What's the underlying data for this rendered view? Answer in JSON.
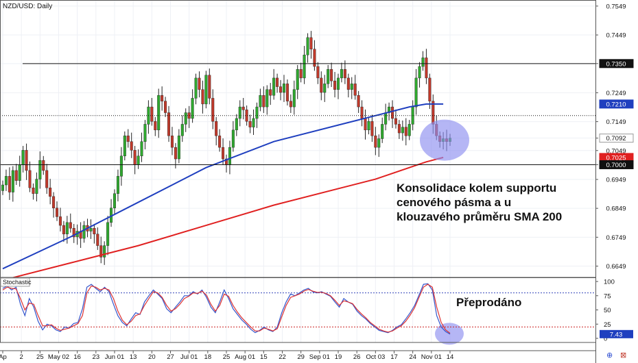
{
  "symbol_label": "NZD/USD: Daily",
  "stoch_label": "Stochastic",
  "annotations": {
    "main": [
      "Konsolidace kolem supportu",
      "cenového pásma a u",
      "klouzavého průměru SMA 200"
    ],
    "stoch": "Přeprodáno"
  },
  "colors": {
    "up": "#2fa82f",
    "down": "#c0392b",
    "sma_blue": "#1f3fbf",
    "sma_red": "#e02020",
    "stoch_k": "#3355cc",
    "stoch_d": "#dd3333",
    "highlight": "#8d8ff0"
  },
  "chart_data": [
    {
      "type": "candlestick",
      "title": "NZD/USD: Daily",
      "ylim": [
        0.661,
        0.757
      ],
      "y_ticks": [
        "0.7549",
        "0.7449",
        "0.7350",
        "0.7249",
        "0.7149",
        "0.7092",
        "0.7049",
        "0.7000",
        "0.6949",
        "0.6849",
        "0.6749",
        "0.6649"
      ],
      "price_labels": [
        {
          "value": "0.7350",
          "style": "dark"
        },
        {
          "value": "0.7210",
          "style": "blue"
        },
        {
          "value": "0.7092",
          "style": "plain"
        },
        {
          "value": "0.7025",
          "style": "red"
        },
        {
          "value": "0.7000",
          "style": "dark"
        }
      ],
      "x_ticks": [
        "Ap",
        "2",
        "25",
        "May 02",
        "16",
        "23",
        "Jun 01",
        "13",
        "20",
        "27",
        "Jul 01",
        "18",
        "25",
        "Aug 01",
        "15",
        "22",
        "29",
        "Sep 01",
        "19",
        "26",
        "Oct 03",
        "17",
        "24",
        "Nov 01",
        "14"
      ],
      "horizontal_lines": [
        {
          "value": 0.735,
          "style": "solid"
        },
        {
          "value": 0.717,
          "style": "dotted"
        },
        {
          "value": 0.7,
          "style": "solid"
        }
      ],
      "closes": [
        0.693,
        0.696,
        0.6905,
        0.698,
        0.6945,
        0.7,
        0.705,
        0.698,
        0.692,
        0.69,
        0.695,
        0.7015,
        0.698,
        0.692,
        0.689,
        0.685,
        0.682,
        0.679,
        0.676,
        0.68,
        0.678,
        0.675,
        0.677,
        0.6745,
        0.679,
        0.677,
        0.678,
        0.676,
        0.672,
        0.668,
        0.672,
        0.68,
        0.685,
        0.69,
        0.696,
        0.703,
        0.71,
        0.708,
        0.705,
        0.7,
        0.703,
        0.708,
        0.714,
        0.72,
        0.715,
        0.712,
        0.724,
        0.722,
        0.718,
        0.71,
        0.706,
        0.702,
        0.71,
        0.714,
        0.718,
        0.716,
        0.723,
        0.73,
        0.726,
        0.721,
        0.731,
        0.723,
        0.715,
        0.71,
        0.706,
        0.702,
        0.7,
        0.706,
        0.712,
        0.716,
        0.72,
        0.719,
        0.715,
        0.713,
        0.716,
        0.72,
        0.724,
        0.72,
        0.726,
        0.724,
        0.73,
        0.727,
        0.725,
        0.728,
        0.722,
        0.72,
        0.726,
        0.733,
        0.73,
        0.738,
        0.744,
        0.74,
        0.734,
        0.73,
        0.725,
        0.728,
        0.733,
        0.729,
        0.726,
        0.73,
        0.733,
        0.73,
        0.726,
        0.728,
        0.724,
        0.72,
        0.716,
        0.712,
        0.715,
        0.71,
        0.706,
        0.709,
        0.714,
        0.718,
        0.72,
        0.716,
        0.714,
        0.711,
        0.713,
        0.71,
        0.714,
        0.72,
        0.73,
        0.734,
        0.737,
        0.73,
        0.722,
        0.714,
        0.71,
        0.708,
        0.709,
        0.708,
        0.7092
      ],
      "lines": [
        {
          "name": "SMA blue",
          "x": [
            0,
            20,
            40,
            60,
            80,
            100,
            110,
            120,
            125,
            130
          ],
          "y": [
            0.664,
            0.675,
            0.687,
            0.699,
            0.708,
            0.714,
            0.717,
            0.72,
            0.721,
            0.721
          ]
        },
        {
          "name": "SMA 200",
          "x": [
            0,
            20,
            40,
            60,
            80,
            100,
            110,
            120,
            125,
            130
          ],
          "y": [
            0.66,
            0.666,
            0.672,
            0.679,
            0.686,
            0.692,
            0.695,
            0.699,
            0.701,
            0.7025
          ]
        }
      ]
    },
    {
      "type": "line",
      "title": "Stochastic",
      "ylim": [
        0,
        100
      ],
      "y_ticks": [
        "100",
        "75",
        "50",
        "25",
        "0"
      ],
      "levels": [
        80,
        20
      ],
      "value_label": "7.43",
      "series": [
        {
          "name": "%K",
          "values": [
            88,
            92,
            85,
            90,
            60,
            40,
            70,
            55,
            30,
            15,
            25,
            22,
            15,
            12,
            20,
            18,
            26,
            28,
            52,
            90,
            95,
            88,
            82,
            90,
            82,
            60,
            40,
            28,
            22,
            34,
            45,
            42,
            64,
            75,
            85,
            78,
            70,
            52,
            45,
            55,
            64,
            75,
            75,
            82,
            78,
            85,
            72,
            55,
            45,
            64,
            85,
            70,
            52,
            42,
            32,
            25,
            16,
            10,
            14,
            20,
            15,
            12,
            20,
            45,
            64,
            78,
            75,
            80,
            85,
            88,
            82,
            80,
            82,
            78,
            74,
            64,
            55,
            70,
            64,
            60,
            48,
            40,
            34,
            26,
            20,
            14,
            12,
            10,
            14,
            20,
            24,
            34,
            45,
            58,
            76,
            95,
            96,
            85,
            40,
            20,
            12,
            7.43
          ]
        },
        {
          "name": "%D",
          "values": [
            85,
            90,
            88,
            87,
            70,
            50,
            62,
            60,
            40,
            22,
            22,
            24,
            18,
            14,
            16,
            18,
            22,
            26,
            40,
            80,
            92,
            90,
            85,
            88,
            85,
            70,
            48,
            32,
            24,
            30,
            40,
            43,
            58,
            70,
            82,
            80,
            72,
            58,
            48,
            52,
            60,
            70,
            74,
            80,
            79,
            83,
            76,
            60,
            48,
            58,
            78,
            74,
            58,
            46,
            36,
            28,
            20,
            13,
            13,
            18,
            16,
            13,
            17,
            38,
            58,
            72,
            75,
            78,
            83,
            86,
            83,
            81,
            81,
            79,
            75,
            67,
            58,
            66,
            64,
            61,
            51,
            43,
            36,
            28,
            22,
            16,
            13,
            11,
            13,
            18,
            22,
            30,
            41,
            54,
            72,
            90,
            95,
            90,
            55,
            28,
            15,
            9
          ]
        }
      ]
    }
  ]
}
